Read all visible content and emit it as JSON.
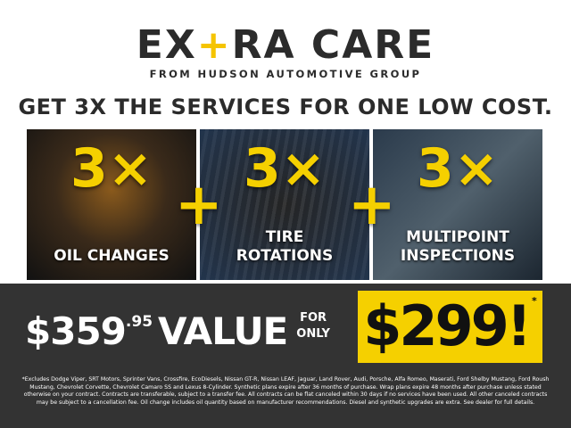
{
  "logo": {
    "pre": "EX",
    "plus": "+",
    "post": "RA CARE",
    "subtitle": "FROM HUDSON AUTOMOTIVE GROUP"
  },
  "headline": "GET 3X THE SERVICES FOR ONE LOW COST.",
  "services": [
    {
      "count": "3×",
      "label": "OIL CHANGES"
    },
    {
      "count": "3×",
      "label": "TIRE ROTATIONS"
    },
    {
      "count": "3×",
      "label": "MULTIPOINT INSPECTIONS"
    }
  ],
  "plus_sign": "+",
  "pricing": {
    "value_dollars": "$359",
    "value_cents": ".95",
    "value_word": "VALUE",
    "for": "FOR",
    "only": "ONLY",
    "price": "$299!",
    "asterisk": "*"
  },
  "fine_print": "*Excludes Dodge Viper, SRT Motors, Sprinter Vans, Crossfire, EcoDiesels, Nissan GT-R, Nissan LEAF, Jaguar, Land Rover, Audi, Porsche, Alfa Romeo, Maserati, Ford Shelby Mustang, Ford Roush Mustang, Chevrolet Corvette, Chevrolet Camaro SS and Lexus 8-Cylinder. Synthetic plans expire after 36 months of purchase. Wrap plans expire 48 months after purchase unless stated otherwise on your contract. Contracts are transferable, subject to a transfer fee. All contracts can be flat canceled within 30 days if no services have been used. All other canceled contracts may be subject to a cancellation fee. Oil change includes oil quantity based on manufacturer recommendations. Diesel and synthetic upgrades are extra. See dealer for full details.",
  "colors": {
    "accent": "#f5d000",
    "dark": "#333333",
    "text": "#2b2b2b"
  }
}
